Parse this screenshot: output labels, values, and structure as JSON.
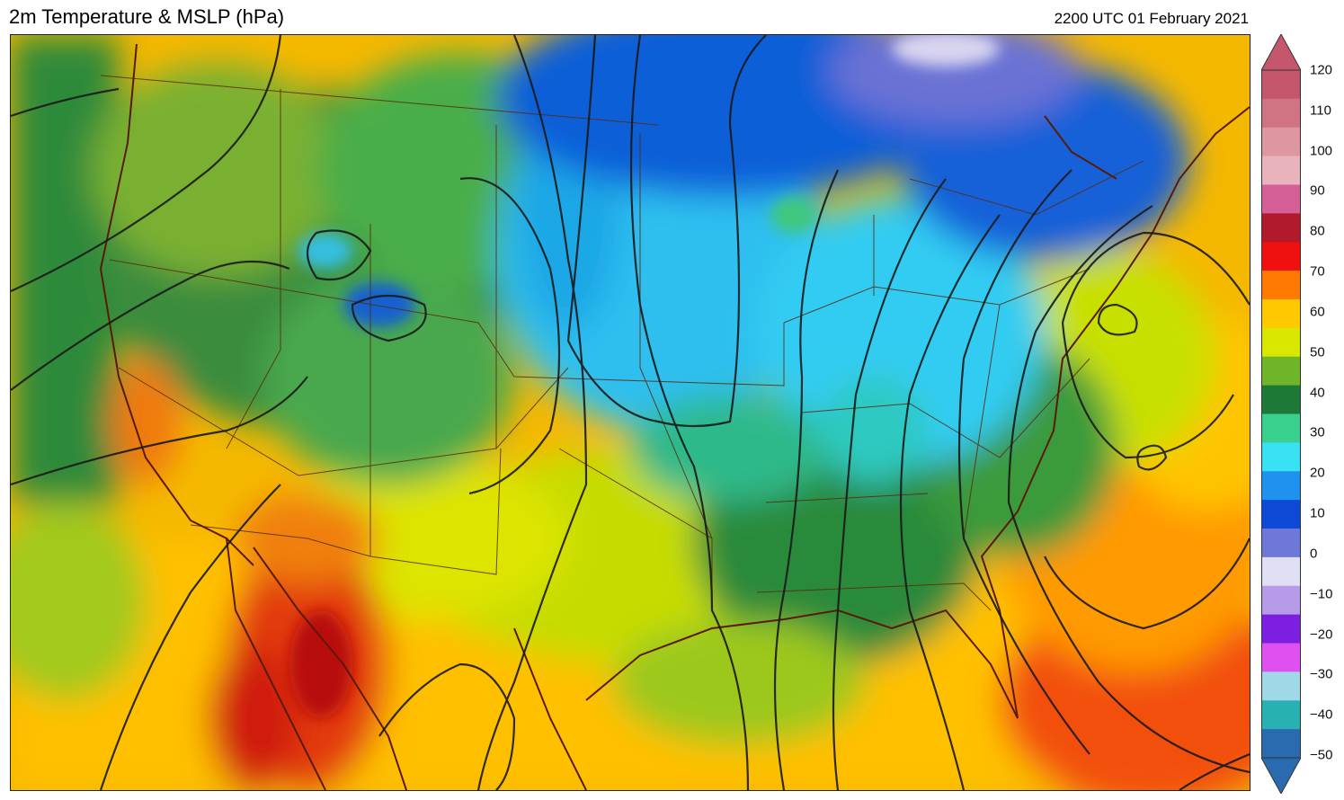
{
  "header": {
    "title": "2m Temperature & MSLP (hPa)",
    "timestamp": "2200 UTC 01 February 2021"
  },
  "colorbar": {
    "ticks": [
      "120",
      "110",
      "100",
      "90",
      "80",
      "70",
      "60",
      "50",
      "40",
      "30",
      "20",
      "10",
      "0",
      "−10",
      "−20",
      "−30",
      "−40",
      "−50"
    ],
    "colors": [
      "#c4576c",
      "#d07483",
      "#de97a1",
      "#e8b3bc",
      "#d55f97",
      "#b11a2b",
      "#f01010",
      "#ff7a00",
      "#ffc800",
      "#d8e600",
      "#6fb52a",
      "#1c7a36",
      "#39d08e",
      "#38e2f2",
      "#1f92f0",
      "#0e4ad6",
      "#6d78d8",
      "#dfdff5",
      "#b79be8",
      "#7c1fe0",
      "#e050f0",
      "#a0d8e8",
      "#27b1b3",
      "#2a6bb0"
    ]
  },
  "map": {
    "colors": {
      "ocean_pacific": "#2a8a3a",
      "mexico_hot": "#e83a10",
      "atlantic_warm": "#ff8c00",
      "plains_cold": "#29c4f0",
      "canada_cold": "#0b5bd6",
      "canada_very_cold": "#6d72d4"
    }
  }
}
